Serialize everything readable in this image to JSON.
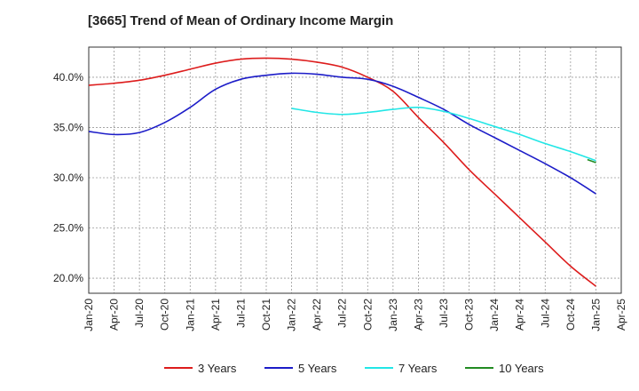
{
  "chart_data": {
    "type": "line",
    "title": "[3665]  Trend of Mean of Ordinary Income Margin",
    "xlabel": "",
    "ylabel": "",
    "ylim": [
      18.5,
      43.0
    ],
    "y_ticks": [
      20.0,
      25.0,
      30.0,
      35.0,
      40.0
    ],
    "y_tick_labels": [
      "20.0%",
      "25.0%",
      "30.0%",
      "35.0%",
      "40.0%"
    ],
    "x_tick_labels": [
      "Jan-20",
      "Apr-20",
      "Jul-20",
      "Oct-20",
      "Jan-21",
      "Apr-21",
      "Jul-21",
      "Oct-21",
      "Jan-22",
      "Apr-22",
      "Jul-22",
      "Oct-22",
      "Jan-23",
      "Apr-23",
      "Jul-23",
      "Oct-23",
      "Jan-24",
      "Apr-24",
      "Jul-24",
      "Oct-24",
      "Jan-25",
      "Apr-25"
    ],
    "grid": true,
    "legend_position": "bottom",
    "series": [
      {
        "name": "3 Years",
        "color": "#dd1c1c",
        "x": [
          "Jan-20",
          "Apr-20",
          "Jul-20",
          "Oct-20",
          "Jan-21",
          "Apr-21",
          "Jul-21",
          "Oct-21",
          "Jan-22",
          "Apr-22",
          "Jul-22",
          "Oct-22",
          "Jan-23",
          "Apr-23",
          "Jul-23",
          "Oct-23",
          "Jan-24",
          "Apr-24",
          "Jul-24",
          "Oct-24",
          "Jan-25"
        ],
        "values": [
          39.2,
          39.4,
          39.7,
          40.2,
          40.8,
          41.4,
          41.8,
          41.9,
          41.8,
          41.5,
          41.0,
          40.0,
          38.6,
          36.0,
          33.5,
          30.8,
          28.4,
          26.0,
          23.6,
          21.2,
          19.2
        ]
      },
      {
        "name": "5 Years",
        "color": "#1c1cc8",
        "x": [
          "Jan-20",
          "Apr-20",
          "Jul-20",
          "Oct-20",
          "Jan-21",
          "Apr-21",
          "Jul-21",
          "Oct-21",
          "Jan-22",
          "Apr-22",
          "Jul-22",
          "Oct-22",
          "Jan-23",
          "Apr-23",
          "Jul-23",
          "Oct-23",
          "Jan-24",
          "Apr-24",
          "Jul-24",
          "Oct-24",
          "Jan-25"
        ],
        "values": [
          34.6,
          34.3,
          34.5,
          35.5,
          37.0,
          38.8,
          39.8,
          40.2,
          40.4,
          40.3,
          40.0,
          39.8,
          39.1,
          38.0,
          36.8,
          35.3,
          34.0,
          32.7,
          31.4,
          30.0,
          28.4
        ]
      },
      {
        "name": "7 Years",
        "color": "#22e6e6",
        "x": [
          "Jan-22",
          "Apr-22",
          "Jul-22",
          "Oct-22",
          "Jan-23",
          "Apr-23",
          "Jul-23",
          "Oct-23",
          "Jan-24",
          "Apr-24",
          "Jul-24",
          "Oct-24",
          "Jan-25"
        ],
        "values": [
          36.9,
          36.5,
          36.3,
          36.5,
          36.8,
          37.0,
          36.6,
          35.9,
          35.1,
          34.3,
          33.4,
          32.6,
          31.7
        ]
      },
      {
        "name": "10 Years",
        "color": "#228b22",
        "x": [
          "Dec-24",
          "Jan-25"
        ],
        "values": [
          31.8,
          31.5
        ]
      }
    ]
  }
}
